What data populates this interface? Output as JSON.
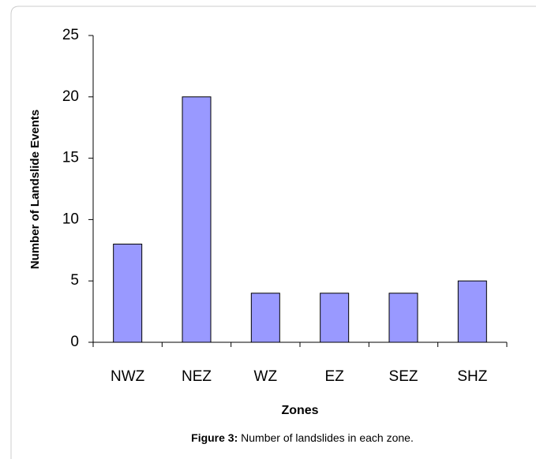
{
  "chart_data": {
    "type": "bar",
    "y_label": "Number of Landslide Events",
    "x_label": "Zones",
    "categories": [
      "NWZ",
      "NEZ",
      "WZ",
      "EZ",
      "SEZ",
      "SHZ"
    ],
    "values": [
      8,
      20,
      4,
      4,
      4,
      5
    ],
    "color": "#9999ff",
    "ylim": [
      0,
      25
    ],
    "yticks": [
      0,
      5,
      10,
      15,
      20,
      25
    ],
    "grid": false,
    "caption_label": "Figure 3:",
    "caption_text": "Number of landslides in each zone."
  }
}
